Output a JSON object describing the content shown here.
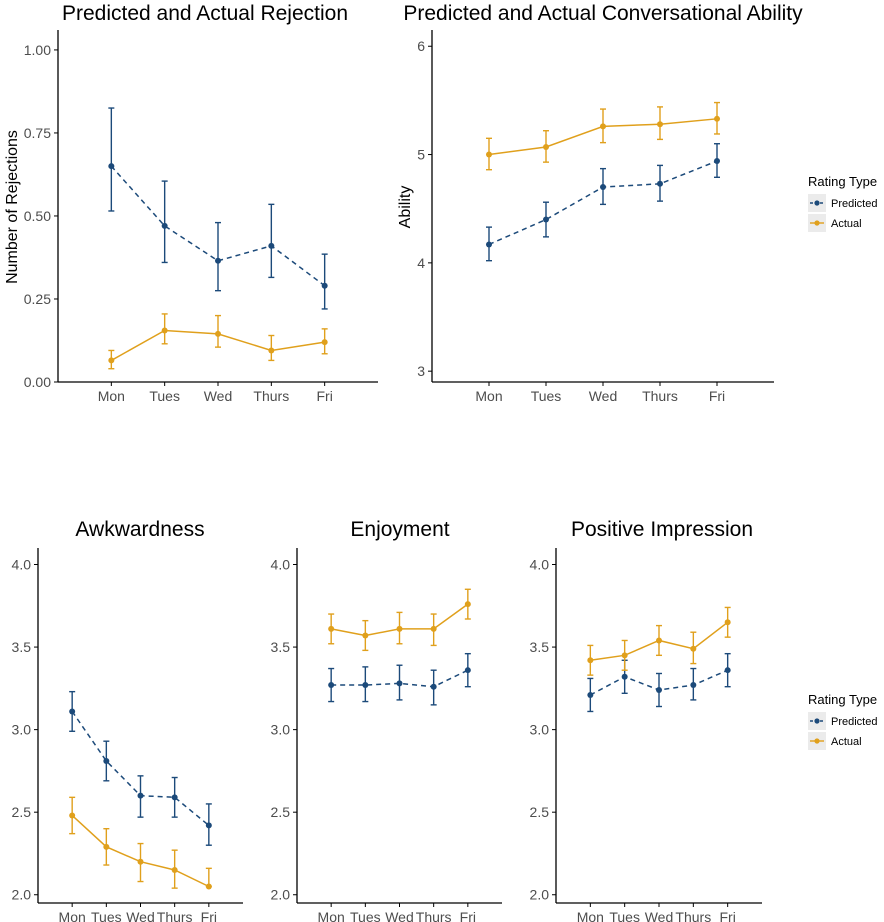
{
  "colors": {
    "predicted": "#1c4a7a",
    "actual": "#e0a01c",
    "axis": "#000000",
    "tick_text": "#4d4d4d",
    "legend_key_bg": "#ebebeb"
  },
  "chart_data": [
    {
      "type": "line",
      "title": "Predicted and Actual Rejection",
      "ylabel": "Number of Rejections",
      "categories": [
        "Mon",
        "Tues",
        "Wed",
        "Thurs",
        "Fri"
      ],
      "ylim": [
        0,
        1.06
      ],
      "yticks": [
        "0.00",
        "0.25",
        "0.50",
        "0.75",
        "1.00"
      ],
      "series": [
        {
          "name": "Predicted",
          "values": [
            0.65,
            0.47,
            0.365,
            0.41,
            0.29
          ],
          "lower": [
            0.515,
            0.36,
            0.275,
            0.315,
            0.22
          ],
          "upper": [
            0.825,
            0.605,
            0.48,
            0.535,
            0.385
          ]
        },
        {
          "name": "Actual",
          "values": [
            0.065,
            0.155,
            0.145,
            0.095,
            0.12
          ],
          "lower": [
            0.04,
            0.115,
            0.105,
            0.065,
            0.085
          ],
          "upper": [
            0.095,
            0.205,
            0.2,
            0.14,
            0.16
          ]
        }
      ]
    },
    {
      "type": "line",
      "title": "Predicted and Actual Conversational Ability",
      "ylabel": "Ability",
      "categories": [
        "Mon",
        "Tues",
        "Wed",
        "Thurs",
        "Fri"
      ],
      "ylim": [
        2.9,
        6.15
      ],
      "yticks": [
        "3",
        "4",
        "5",
        "6"
      ],
      "series": [
        {
          "name": "Predicted",
          "values": [
            4.17,
            4.4,
            4.7,
            4.73,
            4.94
          ],
          "lower": [
            4.02,
            4.24,
            4.54,
            4.57,
            4.79
          ],
          "upper": [
            4.33,
            4.56,
            4.87,
            4.9,
            5.1
          ]
        },
        {
          "name": "Actual",
          "values": [
            5.0,
            5.07,
            5.26,
            5.28,
            5.33
          ],
          "lower": [
            4.86,
            4.93,
            5.11,
            5.14,
            5.19
          ],
          "upper": [
            5.15,
            5.22,
            5.42,
            5.44,
            5.48
          ]
        }
      ]
    },
    {
      "type": "line",
      "title": "Awkwardness",
      "ylabel": "",
      "categories": [
        "Mon",
        "Tues",
        "Wed",
        "Thurs",
        "Fri"
      ],
      "ylim": [
        1.95,
        4.1
      ],
      "yticks": [
        "2.0",
        "2.5",
        "3.0",
        "3.5",
        "4.0"
      ],
      "series": [
        {
          "name": "Predicted",
          "values": [
            3.11,
            2.81,
            2.6,
            2.59,
            2.42
          ],
          "lower": [
            2.99,
            2.69,
            2.47,
            2.47,
            2.3
          ],
          "upper": [
            3.23,
            2.93,
            2.72,
            2.71,
            2.55
          ]
        },
        {
          "name": "Actual",
          "values": [
            2.48,
            2.29,
            2.2,
            2.15,
            2.05
          ],
          "lower": [
            2.37,
            2.18,
            2.08,
            2.04,
            2.05
          ],
          "upper": [
            2.59,
            2.4,
            2.31,
            2.27,
            2.16
          ]
        }
      ]
    },
    {
      "type": "line",
      "title": "Enjoyment",
      "ylabel": "",
      "categories": [
        "Mon",
        "Tues",
        "Wed",
        "Thurs",
        "Fri"
      ],
      "ylim": [
        1.95,
        4.1
      ],
      "yticks": [
        "2.0",
        "2.5",
        "3.0",
        "3.5",
        "4.0"
      ],
      "series": [
        {
          "name": "Predicted",
          "values": [
            3.27,
            3.27,
            3.28,
            3.26,
            3.36
          ],
          "lower": [
            3.17,
            3.17,
            3.18,
            3.15,
            3.26
          ],
          "upper": [
            3.37,
            3.38,
            3.39,
            3.36,
            3.46
          ]
        },
        {
          "name": "Actual",
          "values": [
            3.61,
            3.57,
            3.61,
            3.61,
            3.76
          ],
          "lower": [
            3.52,
            3.48,
            3.52,
            3.51,
            3.67
          ],
          "upper": [
            3.7,
            3.66,
            3.71,
            3.7,
            3.85
          ]
        }
      ]
    },
    {
      "type": "line",
      "title": "Positive Impression",
      "ylabel": "",
      "categories": [
        "Mon",
        "Tues",
        "Wed",
        "Thurs",
        "Fri"
      ],
      "ylim": [
        1.95,
        4.1
      ],
      "yticks": [
        "2.0",
        "2.5",
        "3.0",
        "3.5",
        "4.0"
      ],
      "series": [
        {
          "name": "Predicted",
          "values": [
            3.21,
            3.32,
            3.24,
            3.27,
            3.36
          ],
          "lower": [
            3.11,
            3.22,
            3.14,
            3.18,
            3.26
          ],
          "upper": [
            3.31,
            3.42,
            3.34,
            3.37,
            3.46
          ]
        },
        {
          "name": "Actual",
          "values": [
            3.42,
            3.45,
            3.54,
            3.49,
            3.65
          ],
          "lower": [
            3.33,
            3.36,
            3.45,
            3.4,
            3.56
          ],
          "upper": [
            3.51,
            3.54,
            3.63,
            3.59,
            3.74
          ]
        }
      ]
    }
  ],
  "legends": [
    {
      "title": "Rating Type",
      "items": [
        "Predicted",
        "Actual"
      ]
    },
    {
      "title": "Rating Type",
      "items": [
        "Predicted",
        "Actual"
      ]
    }
  ]
}
